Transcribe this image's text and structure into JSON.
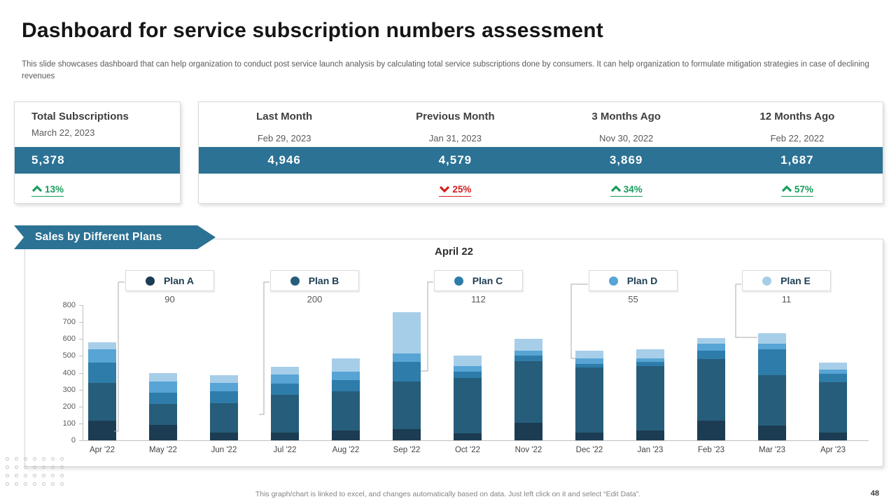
{
  "slide": {
    "title": "Dashboard for service subscription numbers assessment",
    "subtitle": "This slide showcases dashboard that can help organization to conduct post service launch analysis by calculating total service subscriptions done by consumers. It can help organization to formulate mitigation strategies in case of declining revenues",
    "footer_note": "This graph/chart is linked to excel, and changes automatically based on data. Just left click on it and select “Edit Data”.",
    "page_number": "48"
  },
  "colors": {
    "accent_teal": "#2b7294",
    "delta_up_green": "#179d5b",
    "delta_down_red": "#d21f1f",
    "plan_a": "#1b3c52",
    "plan_b": "#265d7b",
    "plan_c": "#2e7ca9",
    "plan_d": "#57a4d5",
    "plan_e": "#a7cee9"
  },
  "kpi": {
    "total": {
      "label": "Total Subscriptions",
      "date": "March 22, 2023",
      "value": "5,378",
      "delta": "13%",
      "direction": "up"
    },
    "columns": [
      {
        "label": "Last Month",
        "date": "Feb 29, 2023",
        "value": "4,946",
        "delta": null,
        "direction": null
      },
      {
        "label": "Previous Month",
        "date": "Jan 31, 2023",
        "value": "4,579",
        "delta": "25%",
        "direction": "down"
      },
      {
        "label": "3 Months Ago",
        "date": "Nov 30, 2022",
        "value": "3,869",
        "delta": "34%",
        "direction": "up"
      },
      {
        "label": "12 Months Ago",
        "date": "Feb 22, 2022",
        "value": "1,687",
        "delta": "57%",
        "direction": "up"
      }
    ]
  },
  "section_banner": "Sales by Different Plans",
  "chart_data": {
    "type": "bar",
    "stacked": true,
    "title": "April 22",
    "grid": false,
    "legend_position": "top",
    "ylim": [
      0,
      800
    ],
    "ytick_step": 100,
    "categories": [
      "Apr '22",
      "May '22",
      "Jun '22",
      "Jul '22",
      "Aug '22",
      "Sep '22",
      "Oct '22",
      "Nov '22",
      "Dec '22",
      "Jan '23",
      "Feb '23",
      "Mar '23",
      "Apr '23"
    ],
    "series": [
      {
        "name": "Plan A",
        "color": "#1b3c52",
        "callout_value": 90,
        "values": [
          115,
          90,
          45,
          45,
          60,
          65,
          40,
          105,
          45,
          60,
          115,
          85,
          45
        ]
      },
      {
        "name": "Plan B",
        "color": "#265d7b",
        "callout_value": 200,
        "values": [
          225,
          125,
          175,
          225,
          230,
          285,
          330,
          365,
          385,
          380,
          365,
          300,
          300
        ]
      },
      {
        "name": "Plan C",
        "color": "#2e7ca9",
        "callout_value": 112,
        "values": [
          120,
          65,
          70,
          65,
          65,
          115,
          35,
          30,
          20,
          25,
          50,
          155,
          50
        ]
      },
      {
        "name": "Plan D",
        "color": "#57a4d5",
        "callout_value": 55,
        "values": [
          80,
          70,
          50,
          55,
          50,
          50,
          35,
          30,
          35,
          20,
          40,
          30,
          25
        ]
      },
      {
        "name": "Plan E",
        "color": "#a7cee9",
        "callout_value": 11,
        "values": [
          40,
          50,
          45,
          45,
          80,
          245,
          60,
          70,
          45,
          55,
          35,
          65,
          40
        ]
      }
    ],
    "category_totals": [
      580,
      400,
      385,
      435,
      485,
      760,
      500,
      600,
      530,
      540,
      605,
      635,
      460
    ]
  }
}
